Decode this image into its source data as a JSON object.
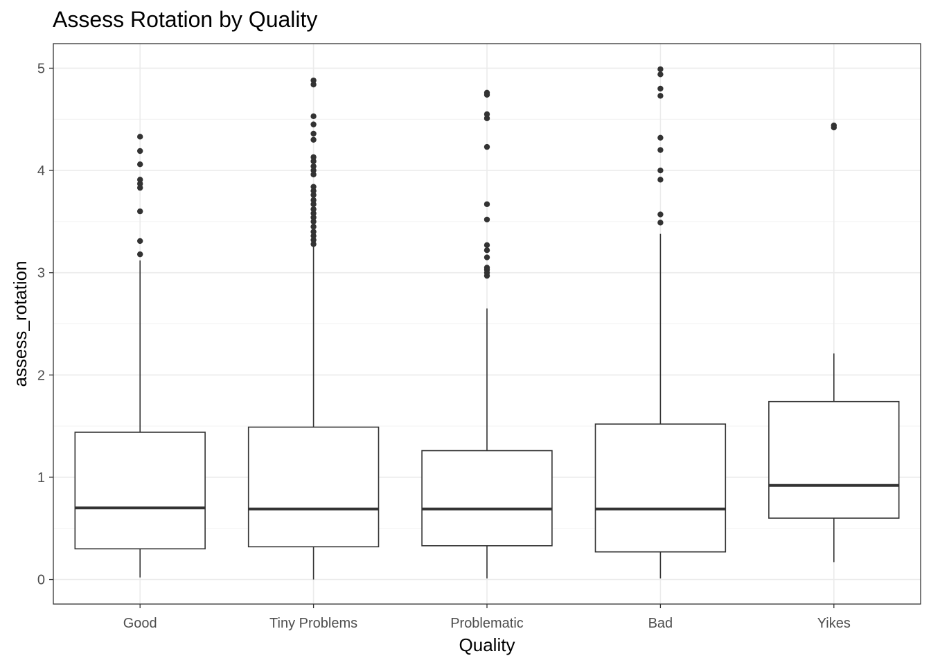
{
  "chart_data": {
    "type": "box",
    "title": "Assess Rotation by Quality",
    "xlabel": "Quality",
    "ylabel": "assess_rotation",
    "ylim": [
      -0.24,
      5.24
    ],
    "yticks": [
      0,
      1,
      2,
      3,
      4,
      5
    ],
    "grid": true,
    "categories": [
      "Good",
      "Tiny Problems",
      "Problematic",
      "Bad",
      "Yikes"
    ],
    "boxes": [
      {
        "category": "Good",
        "whisker_low": 0.02,
        "q1": 0.3,
        "median": 0.7,
        "q3": 1.44,
        "whisker_high": 3.12,
        "outliers": [
          3.18,
          3.31,
          3.6,
          3.83,
          3.87,
          3.91,
          4.06,
          4.19,
          4.33
        ]
      },
      {
        "category": "Tiny Problems",
        "whisker_low": 0.0,
        "q1": 0.32,
        "median": 0.69,
        "q3": 1.49,
        "whisker_high": 3.26,
        "outliers": [
          3.28,
          3.32,
          3.36,
          3.4,
          3.45,
          3.5,
          3.54,
          3.58,
          3.62,
          3.67,
          3.71,
          3.76,
          3.8,
          3.84,
          3.96,
          4.0,
          4.04,
          4.09,
          4.13,
          4.3,
          4.36,
          4.45,
          4.53,
          4.84,
          4.88
        ]
      },
      {
        "category": "Problematic",
        "whisker_low": 0.01,
        "q1": 0.33,
        "median": 0.69,
        "q3": 1.26,
        "whisker_high": 2.65,
        "outliers": [
          2.97,
          3.0,
          3.03,
          3.05,
          3.15,
          3.22,
          3.27,
          3.52,
          3.67,
          4.23,
          4.51,
          4.55,
          4.74,
          4.76
        ]
      },
      {
        "category": "Bad",
        "whisker_low": 0.01,
        "q1": 0.27,
        "median": 0.69,
        "q3": 1.52,
        "whisker_high": 3.38,
        "outliers": [
          3.49,
          3.57,
          3.91,
          4.0,
          4.2,
          4.32,
          4.73,
          4.8,
          4.94,
          4.99
        ]
      },
      {
        "category": "Yikes",
        "whisker_low": 0.17,
        "q1": 0.6,
        "median": 0.92,
        "q3": 1.74,
        "whisker_high": 2.21,
        "outliers": [
          4.42,
          4.44
        ]
      }
    ]
  }
}
